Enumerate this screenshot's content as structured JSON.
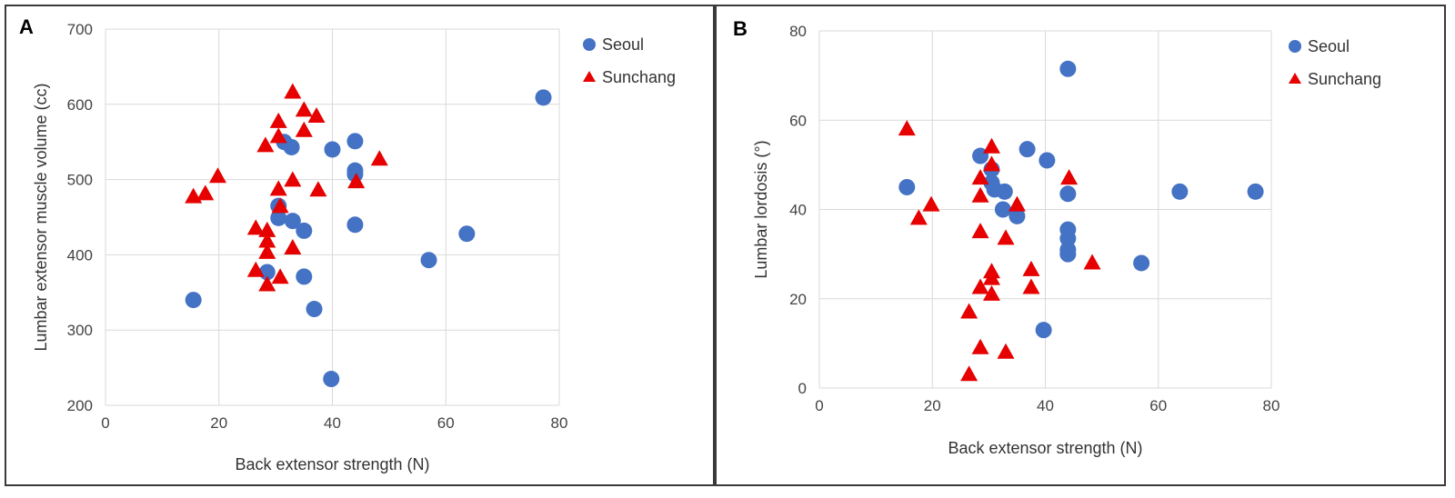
{
  "chart_data": [
    {
      "type": "scatter",
      "panel_label": "A",
      "title": "",
      "xlabel": "Back extensor strength (N)",
      "ylabel": "Lumbar extensor muscle volume (cc)",
      "xlim": [
        0,
        80
      ],
      "ylim": [
        200,
        700
      ],
      "xticks": [
        0,
        20,
        40,
        60,
        80
      ],
      "yticks": [
        200,
        300,
        400,
        500,
        600,
        700
      ],
      "grid": true,
      "legend": "top-right",
      "series": [
        {
          "name": "Seoul",
          "marker": "circle",
          "color": "#4472C4",
          "points": [
            [
              15.5,
              340
            ],
            [
              28.5,
              377
            ],
            [
              30.5,
              465
            ],
            [
              30.5,
              449
            ],
            [
              31.5,
              550
            ],
            [
              32.8,
              543
            ],
            [
              33,
              445
            ],
            [
              35,
              432
            ],
            [
              35,
              371
            ],
            [
              36.8,
              328
            ],
            [
              39.8,
              235
            ],
            [
              40,
              540
            ],
            [
              44,
              551
            ],
            [
              44,
              512
            ],
            [
              44,
              507
            ],
            [
              44,
              440
            ],
            [
              57,
              393
            ],
            [
              63.7,
              428
            ],
            [
              77.2,
              609
            ]
          ]
        },
        {
          "name": "Sunchang",
          "marker": "triangle",
          "color": "#E60000",
          "points": [
            [
              15.5,
              477
            ],
            [
              17.6,
              481
            ],
            [
              19.8,
              504
            ],
            [
              26.5,
              435
            ],
            [
              26.5,
              379
            ],
            [
              28.2,
              545
            ],
            [
              28.5,
              432
            ],
            [
              28.5,
              418
            ],
            [
              28.5,
              403
            ],
            [
              28.5,
              360
            ],
            [
              30.5,
              577
            ],
            [
              30.5,
              557
            ],
            [
              30.5,
              487
            ],
            [
              30.8,
              464
            ],
            [
              30.8,
              370
            ],
            [
              33,
              616
            ],
            [
              33,
              499
            ],
            [
              33,
              409
            ],
            [
              35,
              592
            ],
            [
              35,
              565
            ],
            [
              37.2,
              584
            ],
            [
              37.5,
              486
            ],
            [
              44.2,
              497
            ],
            [
              48.3,
              527
            ]
          ]
        }
      ]
    },
    {
      "type": "scatter",
      "panel_label": "B",
      "title": "",
      "xlabel": "Back extensor strength (N)",
      "ylabel": "Lumbar lordosis (°)",
      "xlim": [
        0,
        80
      ],
      "ylim": [
        0,
        80
      ],
      "xticks": [
        0,
        20,
        40,
        60,
        80
      ],
      "yticks": [
        0,
        20,
        40,
        60,
        80
      ],
      "grid": true,
      "legend": "top-right",
      "series": [
        {
          "name": "Seoul",
          "marker": "circle",
          "color": "#4472C4",
          "points": [
            [
              15.5,
              45
            ],
            [
              28.5,
              52
            ],
            [
              30.5,
              49
            ],
            [
              30.5,
              46
            ],
            [
              31,
              44.5
            ],
            [
              32.5,
              40
            ],
            [
              32.8,
              44
            ],
            [
              35,
              38.5
            ],
            [
              36.8,
              53.5
            ],
            [
              39.7,
              13
            ],
            [
              40.3,
              51
            ],
            [
              44,
              71.5
            ],
            [
              44,
              43.5
            ],
            [
              44,
              35.5
            ],
            [
              44,
              33.5
            ],
            [
              44,
              31
            ],
            [
              44,
              30
            ],
            [
              57,
              28
            ],
            [
              63.8,
              44
            ],
            [
              77.2,
              44
            ]
          ]
        },
        {
          "name": "Sunchang",
          "marker": "triangle",
          "color": "#E60000",
          "points": [
            [
              15.5,
              58
            ],
            [
              17.6,
              38
            ],
            [
              19.8,
              41
            ],
            [
              26.5,
              17
            ],
            [
              26.5,
              3
            ],
            [
              28.5,
              47
            ],
            [
              28.5,
              43
            ],
            [
              28.5,
              35
            ],
            [
              28.5,
              22.5
            ],
            [
              28.5,
              9
            ],
            [
              30.5,
              54
            ],
            [
              30.5,
              50
            ],
            [
              30.5,
              26
            ],
            [
              30.5,
              24.5
            ],
            [
              30.5,
              21
            ],
            [
              33,
              33.5
            ],
            [
              33,
              8
            ],
            [
              35,
              41
            ],
            [
              37.5,
              26.5
            ],
            [
              37.5,
              22.5
            ],
            [
              44.2,
              47
            ],
            [
              48.3,
              28
            ]
          ]
        }
      ]
    }
  ]
}
